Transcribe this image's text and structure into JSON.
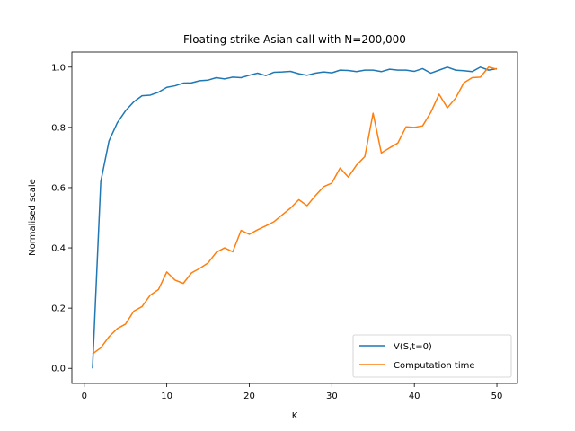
{
  "chart_data": {
    "type": "line",
    "title": "Floating strike Asian call with N=200,000",
    "xlabel": "K",
    "ylabel": "Normalised scale",
    "xlim": [
      -1.5,
      52.5
    ],
    "ylim": [
      -0.05,
      1.05
    ],
    "x_ticks": [
      0,
      10,
      20,
      30,
      40,
      50
    ],
    "y_ticks": [
      0.0,
      0.2,
      0.4,
      0.6,
      0.8,
      1.0
    ],
    "x_tick_labels": [
      "0",
      "10",
      "20",
      "30",
      "40",
      "50"
    ],
    "y_tick_labels": [
      "0.0",
      "0.2",
      "0.4",
      "0.6",
      "0.8",
      "1.0"
    ],
    "grid": false,
    "legend_position": "lower-right",
    "x": [
      1,
      2,
      3,
      4,
      5,
      6,
      7,
      8,
      9,
      10,
      11,
      12,
      13,
      14,
      15,
      16,
      17,
      18,
      19,
      20,
      21,
      22,
      23,
      24,
      25,
      26,
      27,
      28,
      29,
      30,
      31,
      32,
      33,
      34,
      35,
      36,
      37,
      38,
      39,
      40,
      41,
      42,
      43,
      44,
      45,
      46,
      47,
      48,
      49,
      50
    ],
    "series": [
      {
        "name": "V(S,t=0)",
        "color": "#1f77b4",
        "values": [
          0.0,
          0.62,
          0.755,
          0.815,
          0.855,
          0.885,
          0.905,
          0.907,
          0.917,
          0.933,
          0.938,
          0.947,
          0.948,
          0.955,
          0.957,
          0.965,
          0.961,
          0.967,
          0.965,
          0.973,
          0.98,
          0.972,
          0.983,
          0.984,
          0.986,
          0.978,
          0.973,
          0.98,
          0.984,
          0.981,
          0.99,
          0.989,
          0.985,
          0.99,
          0.99,
          0.985,
          0.993,
          0.99,
          0.99,
          0.986,
          0.995,
          0.98,
          0.99,
          1.0,
          0.99,
          0.988,
          0.985,
          1.0,
          0.99,
          0.995
        ]
      },
      {
        "name": "Computation time",
        "color": "#ff7f0e",
        "values": [
          0.048,
          0.068,
          0.105,
          0.132,
          0.147,
          0.19,
          0.205,
          0.243,
          0.262,
          0.32,
          0.293,
          0.282,
          0.317,
          0.332,
          0.35,
          0.385,
          0.4,
          0.387,
          0.458,
          0.445,
          0.46,
          0.473,
          0.487,
          0.51,
          0.532,
          0.56,
          0.54,
          0.573,
          0.603,
          0.615,
          0.665,
          0.635,
          0.675,
          0.703,
          0.847,
          0.715,
          0.732,
          0.748,
          0.802,
          0.8,
          0.805,
          0.85,
          0.91,
          0.865,
          0.897,
          0.948,
          0.965,
          0.967,
          1.0,
          0.993
        ]
      }
    ]
  }
}
